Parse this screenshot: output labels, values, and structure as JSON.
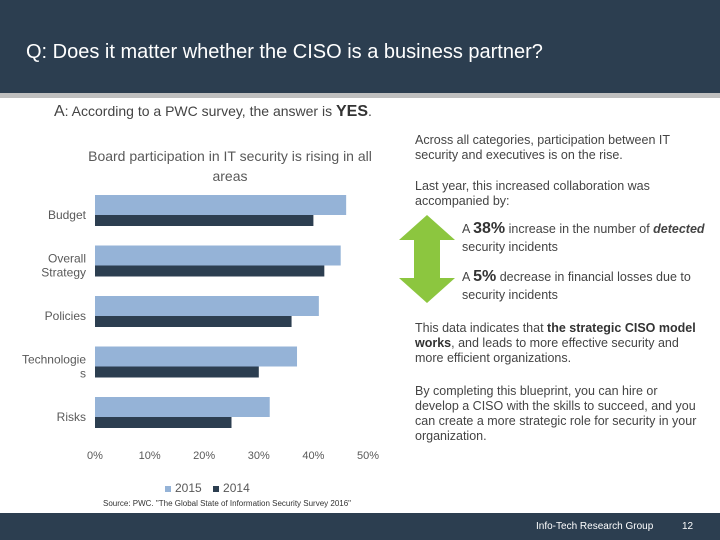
{
  "header": {
    "title": "Q: Does it matter whether the CISO is a business partner?"
  },
  "answer": {
    "prefix": "A",
    "text": ": According to a PWC survey, the answer is ",
    "emphasis": "YES",
    "suffix": "."
  },
  "chart_data": {
    "type": "bar",
    "orientation": "horizontal",
    "title": "Board participation in IT security is rising in all areas",
    "categories": [
      "Budget",
      "Overall Strategy",
      "Policies",
      "Technologies",
      "Risks"
    ],
    "category_labels": [
      [
        "Budget"
      ],
      [
        "Overall",
        "Strategy"
      ],
      [
        "Policies"
      ],
      [
        "Technologie",
        "s"
      ],
      [
        "Risks"
      ]
    ],
    "series": [
      {
        "name": "2015",
        "values": [
          46,
          45,
          41,
          37,
          32
        ],
        "color": "#95b3d7"
      },
      {
        "name": "2014",
        "values": [
          40,
          42,
          36,
          30,
          25
        ],
        "color": "#2c3e50"
      }
    ],
    "xlim": [
      0,
      50
    ],
    "xticks": [
      "0%",
      "10%",
      "20%",
      "30%",
      "40%",
      "50%"
    ],
    "legend_position": "bottom",
    "grid": false
  },
  "source": "Source: PWC. \"The Global State of Information Security Survey 2016\"",
  "side": {
    "intro": "Across all categories, participation between IT security and executives is on the rise.",
    "lastyear": "Last year, this increased collaboration was accompanied by:",
    "stat1": {
      "prefix": "A ",
      "num": "38%",
      "text": " increase in the number of ",
      "em": "detected",
      "tail": " security incidents"
    },
    "stat2": {
      "prefix": "A ",
      "num": "5%",
      "text": " decrease in financial losses due to security incidents"
    },
    "model_pre": "This data indicates that ",
    "model_bold1": "the strategic CISO model works",
    "model_post": ", and leads to more effective security and more efficient organizations.",
    "closing": "By completing this blueprint, you can hire or develop a CISO with the skills to succeed, and you can create a more strategic role for security in your organization."
  },
  "colors": {
    "header": "#2c3e50",
    "arrow": "#8cc63f"
  },
  "footer": {
    "org": "Info-Tech Research Group",
    "page": "12"
  }
}
